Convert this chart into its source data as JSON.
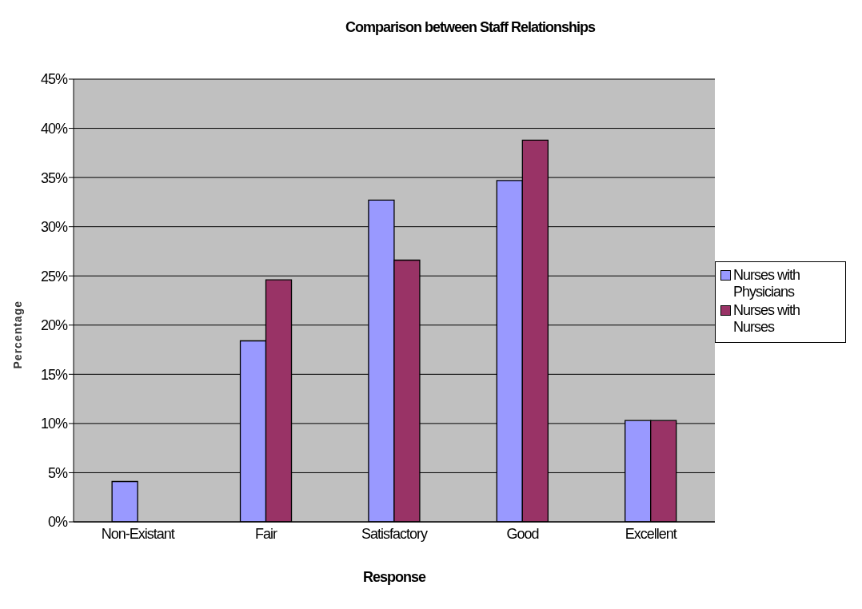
{
  "chart_data": {
    "type": "bar",
    "title": "Comparison between Staff Relationships",
    "xlabel": "Response",
    "ylabel": "Percentage",
    "categories": [
      "Non-Existant",
      "Fair",
      "Satisfactory",
      "Good",
      "Excellent"
    ],
    "series": [
      {
        "name": "Nurses with Physicians",
        "color": "#9999ff",
        "values": [
          4.1,
          18.4,
          32.7,
          34.7,
          10.3
        ]
      },
      {
        "name": "Nurses with Nurses",
        "color": "#993366",
        "values": [
          0,
          24.6,
          26.6,
          38.8,
          10.3
        ]
      }
    ],
    "ylim": [
      0,
      45
    ],
    "yticks": [
      {
        "value": 0,
        "label": "0%"
      },
      {
        "value": 5,
        "label": "5%"
      },
      {
        "value": 10,
        "label": "10%"
      },
      {
        "value": 15,
        "label": "15%"
      },
      {
        "value": 20,
        "label": "20%"
      },
      {
        "value": 25,
        "label": "25%"
      },
      {
        "value": 30,
        "label": "30%"
      },
      {
        "value": 35,
        "label": "35%"
      },
      {
        "value": 40,
        "label": "40%"
      },
      {
        "value": 45,
        "label": "45%"
      }
    ],
    "grid": "y",
    "legend": "right"
  }
}
